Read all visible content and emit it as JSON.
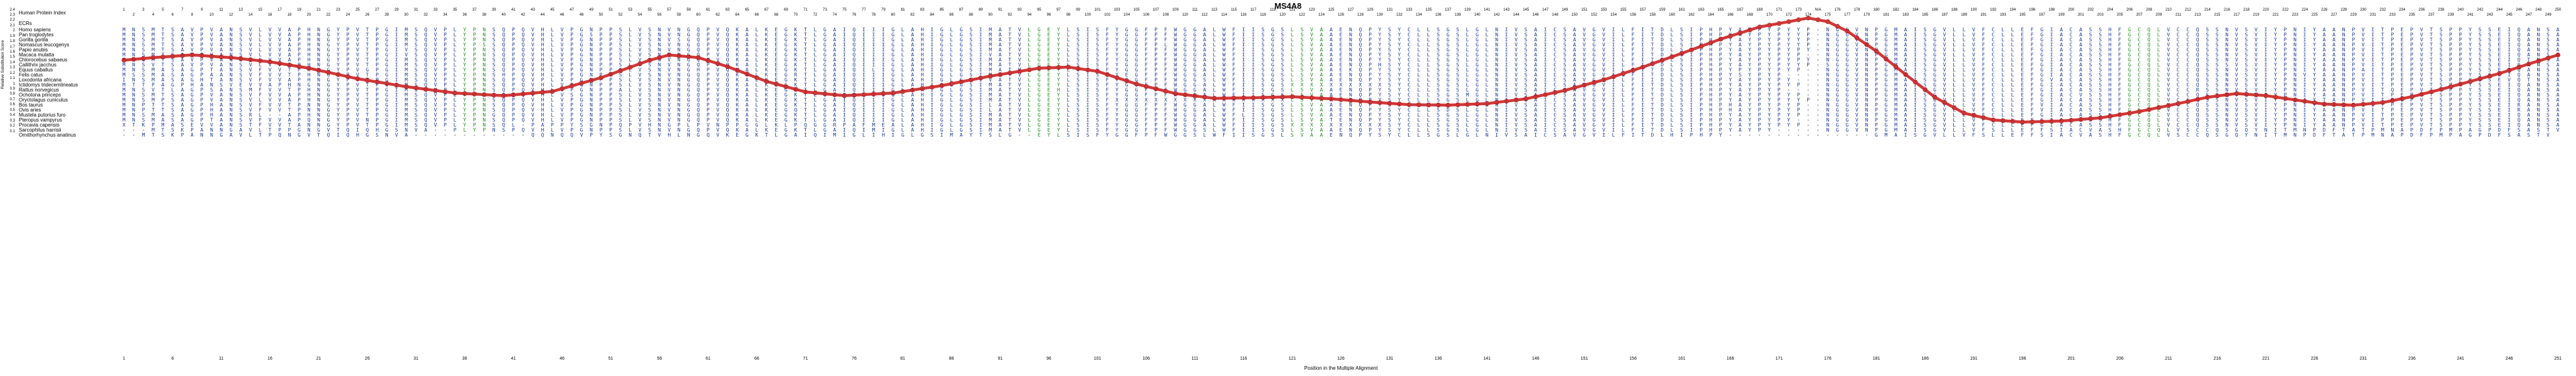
{
  "title": "MS4A8",
  "colors": {
    "background": "#ffffff",
    "sequence": "#1f3899",
    "sequence_green": "#1e8c1e",
    "gap": "#111111",
    "curve": "#cc1111",
    "text": "#000000"
  },
  "header": {
    "human_protein_index_label": "Human Protein Index",
    "ecrs_label": "ECRs",
    "index": {
      "columns": 251,
      "gap_column": 175,
      "gap_label": "N/A",
      "last_index": 250
    }
  },
  "axes": {
    "y": {
      "label": "Relative Substitution Score",
      "ticks": [
        "2.4",
        "2.3",
        "2.2",
        "2.1",
        "2",
        "1.9",
        "1.8",
        "1.7",
        "1.6",
        "1.5",
        "1.4",
        "1.3",
        "1.2",
        "1.1",
        "1",
        "0.9",
        "0.8",
        "0.7",
        "0.6",
        "0.5",
        "0.4",
        "0.3",
        "0.2",
        "0.1"
      ]
    },
    "x": {
      "label": "Position in the Multiple Alignment",
      "ticks": [
        1,
        6,
        11,
        16,
        21,
        26,
        31,
        36,
        41,
        46,
        51,
        56,
        61,
        66,
        71,
        76,
        81,
        86,
        91,
        96,
        101,
        106,
        111,
        116,
        121,
        126,
        131,
        136,
        141,
        146,
        151,
        156,
        161,
        166,
        171,
        176,
        181,
        186,
        191,
        196,
        201,
        206,
        211,
        216,
        221,
        226,
        231,
        236,
        241,
        246,
        251
      ]
    }
  },
  "alignment": {
    "columns": 251,
    "green_column_ranges": [
      [
        36,
        38
      ],
      [
        94,
        97
      ],
      [
        121,
        124
      ],
      [
        207,
        210
      ]
    ],
    "rows": [
      {
        "name": "Homo sapiens",
        "seq": "MNSMTSAVPVANSVLVVAPHNGYPVTPGIMSQVPLYPNSQPQVHLVPGNPPSLVSNVNGQPVQKALKEGKTLGAIQIIIGLAHIGLGSIMATVLGEYLSISFYGGFPFWGGALWFIISGSLSVAAENQPYSYCLLSGSLGLNIVSAICSAVGVILFITDLSIPHPYAYPYPYYP-NGGVNPGMAISGVLLVFCLLEFGIACASSHFGCQLVCCQSSNVSVIYPNIYAANPVITPEPVTSPPYSSEIQANSA"
      },
      {
        "name": "Pan troglodytes",
        "seq": "MNSMTSAVPVANSVLVVAPHNGYPVTPGIMSQVPLYPNSQPQVHLVPGSPPSLVSNVNGQPVQKALKEGKTLGAIQIIIGLAHIGLGSIMATVLGEYLSISFYGGFPFWGGALWFIISGSLSVAAENQPYSYCLLSGSLGLNIVSAICSAVGVILFITDLSIPHPYAYPYPYYP-NGGVNPGMAISGVLLVFCLLEFGIACASSHFGCQLVCCQSSNVSVIYPNIYAANPVITPEPVTSPPYSSEIQANSA"
      },
      {
        "name": "Gorilla gorilla",
        "seq": "MNSMTSAVPVANSVLVVAPHNGYPVTPGIMSQVPLYPNSQPQVHLVPGNPPSLVSNVSGQPVQKALKEGKTLGAIQIIIGLAHIGLGSIMATVLGEYLSISFYGGFPFWGGALWFIISGSLSVAAENQPYSYCLLSGSLGLNIVSAICSAVGVILFITDLSIPHPYAYPYPYYP-NGGVNPGMAISGVLLVFCLLEFGIACASSHFGCQLVCCQSSNVSVIYPNIYAANPVITPEPVTSPPYSSEIQANSA"
      },
      {
        "name": "Nomascus leucogenys",
        "seq": "MNSMTSAVPVANSVLVVAPHNGYPVTPGIMSQVPLYPSSQPQVHLVPGNPPSLVSNVNGQPVQKALKEGKTLGAIQIIIGLAHIGLGSIMATVLGEYLSISFYGGFPLWGGALWFIISGSLSVAAENQPYSYCLLSGSLGLNIVSAICSAVGVILFITDLSIPHPYAYPYPYYP-NGGVNPGMAISGVLLVFCLLEFGIACASSHFGCQLVCCQSSNVSVIYPNIYAANPVITPEPVTSPPYSSEIQANSA"
      },
      {
        "name": "Papio anubis",
        "seq": "MNSMTSAVPVANSVLVVAPHNGYPVTPGIVSQVPLYPNSQPQVHLVPGNPPSLVSNVNGQPVQKALKEGKTLGAIQIIIGLAHIGLGSIMATVLGEYLSISFYGGFPFWGGALWFIISGSLSVAAENQPYSYCLLSGSLGLNIVSAICSAVGVILFITDLSIPHPYAYPYPYPY-NGGVNPGMAISGVLLVFCLLEFGIACASSHFGCQLVCCQSSNVSVIYPNIYAANPVITPEPVTSPPYSSEIQANSA"
      },
      {
        "name": "Macaca mulatta",
        "seq": "MNSMTSAVPVANSVLVVAPHNGYPVTPGIVSQVPLYPNSQPQVHLVPGNPPSLVSNVNGQPVQKALKEGKTLGAIQIIIGLAHIGLGSIVATVLGEYLSISFYGGFPFWGGALWFIISGSLSVAAENQPYSYCLLSGSLGLNIVSAICSAVGVILFITDLSIPHPYAYPYPYP--NGGVNPGMAISGVLLVFCLLEFGIACASSHFGCQLVCCQSSNVSVIYPNIYAANPVITPEPVTSPPYSSEIQANSA"
      },
      {
        "name": "Chlorocebus sabaeus",
        "seq": "MNSMTSAVPVANSVLVVAPHNGYPVTPGIMSQVPLYPNSQPQVHLVPGNPPSLVSNVNGQPVQKALKEGKTLGAIQIIIGLAHIGLGSIMATVLGEYLSISFYGGFPFWGGALWFIISGSLSVAAENQPYSYCLLSGSLGLNIVSAICSAVGVILFITDLSIPHPYAYPYPYPY-NGGVNPGMAISGVLLVFCLLEFGIACASSHFGCQLVCCQSSNVSVIYPNIYAANPVITPEPVTSPPYSSEIQTNSA"
      },
      {
        "name": "Callithrix jacchus",
        "seq": "MNSVTSAVPVANSVLVVAPHNGYPVTPGIMSQVPLYPNSQPQVHLVPGNPPSLVSNVNGQPVQKALKEGKTLGAIQIIIGLAHIGLGSIMATVLGEYLSISFYGGFPFWGGALWFIISGSLSVAAENQPHSYCLLSGSLGLNIVSAICSAVGVILFITDLSIPHPYAYPYPYYP-SGGVNPGMAISGVLLVFCLLEFGIACASSHFGCQLVCCQSSSVSVIYPNIYAANPVITPEPVTSPPYSSEIQANSA"
      },
      {
        "name": "Equus caballus",
        "seq": "MNSMASAGPTANSVFVVTPHNGYPVGPGIMSQVPLYPNSQPQVHLVPGNPPSLVSNVNGHPVQKALKEGKTLGAIQILIGLAHIGLGSIMATVLGEYLSISFYGGFPFWGGALWFIISGSLSVAAEKQPYSYCLLSGSLGLNIVSAICSAVGVILFITDLSIPHPYPYPYPYP--NGGVNPGMAISGVLLVFCLLEFGIACASSHFGCQLVCCQSSNVSVIYPNIYAANPAITPEPVTSPPYSSEIQANSA"
      },
      {
        "name": "Felis catus",
        "seq": "MSSMASAGPAANSVFVVTPHNGYPVTPGIMSQVPLYPNSHPQVHLVPGNPPSLVSNVNGQPVQKALKEGRTLGAIQIIIGLAHIGLGSIMATVLGEYLSISFYEGFPFWGGALWFIISGSLSVAAENQPYSYCLLSGSLGLNIVSAICSAVGVILFITDLSIPHPYSYPYP----NGGVNPGMAISGVLLVFCLLEFGIACASSHFGCQLVCCQSSNVSVIYPNVYAANPVITPEPVTSPPYSSEIQANSA"
      },
      {
        "name": "Loxodonta africana",
        "seq": "INSMASAGHTANSVFVVAPHNGYPVTPGIMSQVPLYPNSQPQVPLVPGNPPSLVSNVNGQPVQKALKEGKTLGAIQIIIGLAHIGLGSIVATVLGEYLSISFYGGFPFWGGSLWFIISGSLSVAAENQPYSYCLLSGSLGLNIVSAICSAVGVILFIIDLSIPHPYAYPYPY---NGGVNPGMAISGVLLVFCLLEFGVACASSHFGCQLVCCQSSNVSVIYPNIYAANPVITPEPVTSPPYSSEVQTNSA"
      },
      {
        "name": "Ictidomys tridecemlineatus",
        "seq": "MTTPAGPHANSVEVVAPHNGNGYPVTPGIMSQVPLYPNSQPQVHLVPGNPPSLVSNVNGQPVQKALKEGKTLGAIQIIIGLAHIGLGSIMATVLGEYLSISFYGGFPFWGGALWFIISGSXXXXXXXXXXSYCLLSGSLGLNIVSAICSAVGVILFITDLSIPHPYAYPYPYP--NGGVNPGMAISGVLLVFCLLEFGIACASSHFGCQLVCCQSSNVSVIYPNIYAANPVITPEPVTSPPYSSEIQANSA"
      },
      {
        "name": "Rattus norvegicus",
        "seq": "MNSVTLAGPSANSMFVVTPHNGYPVTPGIMSQVPLYPNSQPQVHLVPGNPPALVSNVNGQPVQKALKEGKTLGAIQIIIGLAHIGLGSIMATVLGEHLSISFYGGFPFWGGALWFIISGSLSVAAENQPYSYCLLSGSLGLNIVSAICSAVGVILFITDLSIPHPYAYPYP----NGGVNPGMAISGVLLVFCLLEFGIACASSHFGCQLVCCRSSNVSVIYPNIYAANPVITQEPVTSPPYSSEIQANSA"
      },
      {
        "name": "Ochotona princeps",
        "seq": "MNSMTSAGPVANSVFVVAPHNGYPVTPGIMSQVPLYPNSQPQVHLVSGNPPSLVSNVNGQPVQKALKEGKTLGAIQIIIGLAHIGLGSIMATVLGEYLSISFYGGFPFWGGALWFIISGSLSVAAENQPYSYCLLSGSMGLNIVSAICSAVGVILFITDLSIPHPYAYPYPYP--NGGVNPGMAISGVLLVFCLLEFGIACVSSHFGCQLVCCQSSNVSVIYPNIYAANPVITPEPVTSPPYSSEIQANSA"
      },
      {
        "name": "Oryctolagus cuniculus",
        "seq": "MNSMPSAGPVANSVLVVAPHNGYPVTPGIMSQVPLYPNSQPQVHLVPGNPPSLVSNVNGQPVQKALKEGKTLGAIQIIIGLAHIGLGSIMATVLGEYLSISFXXXXXXXXXXXXXXXXXXLSVAAENQPYSYCLLSGSLGLNIVSAICSAVGVILFITDLSIPHPYAYPYPYYP-NGGVNPGMAISGVLLVFCLLEFGIACASSHFGCQLVCCQSSNVSVIYPNIYTANPVITPEPVTSPPYSSEIQANSA"
      },
      {
        "name": "Bos taurus",
        "seq": "MNPTTSAGPHANSVFVVTPNNGYPVTPGIMSQVPLYPNSQPQVHLVPGNPPSLVSNVNGQPVQKALKEGKTLGAIQIIIGLAHIGLGSILATVLGEYLSISFYGGFPFWGGALWFIISGSLSVAAENQPYSYCLLSGSLGLNIVSAICSAVGVILFITDLSIPHPHAYPYPYP--NGGVNPGMAISGVLLVFCLLEFVIACASSHFGCQLVCCQSSNVSVIYPNIYAANPVITPEPVTSPPYSSEIRANSA"
      },
      {
        "name": "Ovis aries",
        "seq": "MNPTTSAGPHANSVFVVTPNNGYPVTPGIMSQVPLYPNSQPQVHLVPGNPPSLVSNVNGQPVQKALKEGQTLGAIQIIIGLAHIGLGSILATVLGEYLSISFYGGFPFWGGALWFIISGSLSVAAENQPYSYCLLSDSLGLNIVSAICSAVGVILFITDLSIPHPHAYPYPYP--NGGVNPGMAISGVLLVFCLLEFVIACASSHFGCQLVCCQSSNVSVIYPNIYAANPVITPEPVTSPPYSSEIRANSA"
      },
      {
        "name": "Mustela putorius furo",
        "seq": "MNSMASAGPHANSRL--APHNGYPVTPGIMSQVPLYPNGQPQVHLVPGNPPSLVSNVNGQPVQKALKEGKTLGAIQIIIGLAHIGLGSIMATVLGEYLSISFYGGFPFWGGALWFLISGSLSVAAENQPYSYCLLSGSLGLNIVSAICSAVGVILFITDLSIPHPYAYPYPYP--NGGVNPGMAISGVLLVFCLLEFGIACASSNFGCQLVCCQSSNVSVIYPNIYAANPVITPEPVTSPPYSSEIQANSA"
      },
      {
        "name": "Pteropus vampyrus",
        "seq": "MNSMASAGPTANSVFVVAPQNGYPVNPGIMSQVPLYPNSQPQVHLVPGNPPSLVSNVNGQPVQKALKEGKTLGAIQIIIGLAHIGLGSIMATVLGEYLSISFYGGFPFWGGALWFIISGSLSVATENQPYSYCLLSGSLGLNIVSAICSAVGVILFITDLSIPHPYAYPYPY---NGGVNPGMAISGVLLVFCLLEFGIACASSHFGCQLVCCQSSNVSVIYPNIYAANPVIPPEPVTSPPYSSEIQANSA"
      },
      {
        "name": "Procavia capensis",
        "seq": "XTKPMASEVVANSTFVVTANNGYPVTPGIMSQVPLYPNSQL-PAPPYSGNPQPVHNGPLPVNPPGGLKLPQGGRPAFMEALAHIGLGSIMATVLGEYLSISFYGGFPFWGGALWFIISGSXXXXXXXXXXSYCLLSGSLGLNIVSAICSAVGVILFITDLSIPHPYAYPYPYP--NGGVNPGMAISGVLLVFCLLEFGIACASSHFGCQLVCCQSSNVSVIYPNIYAANPVITPEPVTSPPYSSEIQANSA"
      },
      {
        "name": "Sarcophilus harrisii",
        "seq": "---MTSKPANNGAVLTPPGNGVTQIQHGSNVA--PLYPNSPQVHLVPGNPPSLVSNVNGQPVQKALKEGKTLGAIQIMIGLAHIGLGSIMATVLGEYLSISFYGGFPFWGGSLWFIISGSLSVAAENQPYSYCLLSGSLGLNIVSAICSAVGVILFITDLSIPHPYAYPY-----NGGVNPGMAISGVLLVFSLLEFFSIACVASHFGCQLVSCCQSGQYNITMNPDFTATPMNAPDFPMPAGPDFSASTV"
      },
      {
        "name": "Ornithorhynchus anatinus",
        "seq": "--MTSKPANNGAVLTPQNGVTQIQHGSNVA------------QQNQQVPYSGNQTVHLNGQVKEGKTLGAIQIMIGLIHIGLGSIMAYTSLG--EYLSISFYGGFPFWGGSLWFIISGSLSVAAENQPYSYCLLSGSLGLNIVSAICSAVGVILFITDLHIPHPY---------------GMAISGVLLVFSLLEFFSIACVASHFGCQLVSCCQSGQYNITMNPDFTATPMNAPDFPMPAGPDFSASTV"
      }
    ]
  },
  "chart_data": {
    "type": "line",
    "title": "MS4A8",
    "xlabel": "Position in the Multiple Alignment",
    "ylabel": "Relative Substitution Score",
    "xlim": [
      1,
      251
    ],
    "ylim": [
      0.1,
      2.4
    ],
    "grid": false,
    "legend": "none",
    "marker": "circle",
    "color": "#cc1111",
    "series": [
      {
        "name": "Relative Substitution Score",
        "keypoints": [
          [
            1,
            1.45
          ],
          [
            4,
            1.5
          ],
          [
            8,
            1.55
          ],
          [
            12,
            1.5
          ],
          [
            16,
            1.42
          ],
          [
            20,
            1.3
          ],
          [
            25,
            1.1
          ],
          [
            30,
            0.95
          ],
          [
            35,
            0.83
          ],
          [
            40,
            0.78
          ],
          [
            45,
            0.86
          ],
          [
            50,
            1.12
          ],
          [
            55,
            1.45
          ],
          [
            57,
            1.55
          ],
          [
            60,
            1.5
          ],
          [
            63,
            1.33
          ],
          [
            67,
            1.05
          ],
          [
            71,
            0.85
          ],
          [
            75,
            0.78
          ],
          [
            80,
            0.83
          ],
          [
            85,
            0.97
          ],
          [
            90,
            1.15
          ],
          [
            95,
            1.3
          ],
          [
            98,
            1.32
          ],
          [
            101,
            1.24
          ],
          [
            105,
            1.0
          ],
          [
            109,
            0.82
          ],
          [
            113,
            0.73
          ],
          [
            117,
            0.74
          ],
          [
            121,
            0.76
          ],
          [
            125,
            0.72
          ],
          [
            129,
            0.66
          ],
          [
            133,
            0.61
          ],
          [
            137,
            0.6
          ],
          [
            141,
            0.63
          ],
          [
            145,
            0.72
          ],
          [
            149,
            0.88
          ],
          [
            153,
            1.08
          ],
          [
            157,
            1.32
          ],
          [
            161,
            1.58
          ],
          [
            165,
            1.85
          ],
          [
            169,
            2.08
          ],
          [
            172,
            2.18
          ],
          [
            174,
            2.25
          ],
          [
            176,
            2.18
          ],
          [
            178,
            2.0
          ],
          [
            181,
            1.62
          ],
          [
            184,
            1.18
          ],
          [
            187,
            0.75
          ],
          [
            190,
            0.45
          ],
          [
            193,
            0.32
          ],
          [
            196,
            0.28
          ],
          [
            200,
            0.3
          ],
          [
            204,
            0.36
          ],
          [
            208,
            0.48
          ],
          [
            212,
            0.63
          ],
          [
            215,
            0.75
          ],
          [
            218,
            0.82
          ],
          [
            221,
            0.78
          ],
          [
            224,
            0.7
          ],
          [
            227,
            0.62
          ],
          [
            230,
            0.6
          ],
          [
            233,
            0.65
          ],
          [
            236,
            0.76
          ],
          [
            239,
            0.9
          ],
          [
            242,
            1.05
          ],
          [
            245,
            1.2
          ],
          [
            248,
            1.38
          ],
          [
            251,
            1.55
          ]
        ]
      }
    ]
  }
}
